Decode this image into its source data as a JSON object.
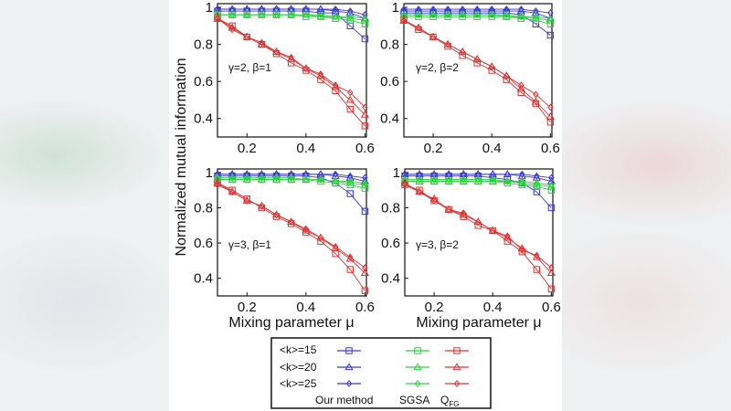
{
  "chart_data": [
    {
      "type": "line",
      "annotation": "γ=2, β=1",
      "xlabel": "",
      "ylabel": "",
      "xlim": [
        0.1,
        0.605
      ],
      "ylim": [
        0.3,
        1.02
      ],
      "grid": false,
      "x": [
        0.1,
        0.15,
        0.2,
        0.25,
        0.3,
        0.35,
        0.4,
        0.45,
        0.5,
        0.55,
        0.6
      ],
      "xticks": [
        "0.2",
        "0.4",
        "0.6"
      ],
      "yticks": [
        "1",
        "0.8",
        "0.6",
        "0.4"
      ],
      "series": [
        {
          "method": "Our method",
          "k": "<k>=15",
          "values": [
            0.98,
            0.98,
            0.98,
            0.98,
            0.98,
            0.98,
            0.98,
            0.97,
            0.97,
            0.9,
            0.83
          ]
        },
        {
          "method": "Our method",
          "k": "<k>=20",
          "values": [
            0.99,
            0.99,
            0.99,
            0.99,
            0.99,
            0.99,
            0.99,
            0.99,
            0.98,
            0.97,
            0.94
          ]
        },
        {
          "method": "Our method",
          "k": "<k>=25",
          "values": [
            0.99,
            0.99,
            0.99,
            0.99,
            0.99,
            0.99,
            0.99,
            0.99,
            0.99,
            0.98,
            0.96
          ]
        },
        {
          "method": "SGSA",
          "k": "<k>=15",
          "values": [
            0.96,
            0.96,
            0.96,
            0.96,
            0.96,
            0.96,
            0.95,
            0.95,
            0.94,
            0.93,
            0.91
          ]
        },
        {
          "method": "SGSA",
          "k": "<k>=20",
          "values": [
            0.96,
            0.96,
            0.96,
            0.96,
            0.96,
            0.96,
            0.96,
            0.95,
            0.95,
            0.94,
            0.93
          ]
        },
        {
          "method": "SGSA",
          "k": "<k>=25",
          "values": [
            0.96,
            0.96,
            0.96,
            0.96,
            0.96,
            0.96,
            0.96,
            0.96,
            0.95,
            0.95,
            0.94
          ]
        },
        {
          "method": "QFG",
          "k": "<k>=15",
          "values": [
            0.94,
            0.9,
            0.84,
            0.8,
            0.75,
            0.7,
            0.66,
            0.61,
            0.55,
            0.45,
            0.36
          ]
        },
        {
          "method": "QFG",
          "k": "<k>=20",
          "values": [
            0.94,
            0.89,
            0.84,
            0.8,
            0.76,
            0.72,
            0.67,
            0.63,
            0.57,
            0.5,
            0.42
          ]
        },
        {
          "method": "QFG",
          "k": "<k>=25",
          "values": [
            0.94,
            0.88,
            0.84,
            0.81,
            0.76,
            0.73,
            0.67,
            0.64,
            0.58,
            0.54,
            0.46
          ]
        }
      ]
    },
    {
      "type": "line",
      "annotation": "γ=2, β=2",
      "xlabel": "",
      "ylabel": "",
      "xlim": [
        0.1,
        0.605
      ],
      "ylim": [
        0.3,
        1.02
      ],
      "grid": false,
      "x": [
        0.1,
        0.15,
        0.2,
        0.25,
        0.3,
        0.35,
        0.4,
        0.45,
        0.5,
        0.55,
        0.6
      ],
      "xticks": [
        "0.2",
        "0.4",
        "0.6"
      ],
      "yticks": [
        "1",
        "0.8",
        "0.6",
        "0.4"
      ],
      "series": [
        {
          "method": "Our method",
          "k": "<k>=15",
          "values": [
            0.97,
            0.97,
            0.97,
            0.97,
            0.97,
            0.97,
            0.97,
            0.97,
            0.96,
            0.91,
            0.85
          ]
        },
        {
          "method": "Our method",
          "k": "<k>=20",
          "values": [
            0.98,
            0.98,
            0.98,
            0.98,
            0.98,
            0.98,
            0.98,
            0.98,
            0.98,
            0.97,
            0.94
          ]
        },
        {
          "method": "Our method",
          "k": "<k>=25",
          "values": [
            0.99,
            0.99,
            0.99,
            0.99,
            0.99,
            0.99,
            0.99,
            0.99,
            0.99,
            0.98,
            0.97
          ]
        },
        {
          "method": "SGSA",
          "k": "<k>=15",
          "values": [
            0.95,
            0.95,
            0.95,
            0.95,
            0.95,
            0.95,
            0.95,
            0.95,
            0.94,
            0.93,
            0.91
          ]
        },
        {
          "method": "SGSA",
          "k": "<k>=20",
          "values": [
            0.96,
            0.96,
            0.96,
            0.96,
            0.96,
            0.96,
            0.96,
            0.95,
            0.95,
            0.94,
            0.93
          ]
        },
        {
          "method": "SGSA",
          "k": "<k>=25",
          "values": [
            0.96,
            0.96,
            0.96,
            0.96,
            0.96,
            0.96,
            0.96,
            0.96,
            0.95,
            0.95,
            0.94
          ]
        },
        {
          "method": "QFG",
          "k": "<k>=15",
          "values": [
            0.93,
            0.88,
            0.84,
            0.79,
            0.74,
            0.7,
            0.66,
            0.61,
            0.54,
            0.48,
            0.38
          ]
        },
        {
          "method": "QFG",
          "k": "<k>=20",
          "values": [
            0.93,
            0.89,
            0.84,
            0.8,
            0.76,
            0.72,
            0.68,
            0.63,
            0.56,
            0.49,
            0.41
          ]
        },
        {
          "method": "QFG",
          "k": "<k>=25",
          "values": [
            0.93,
            0.89,
            0.84,
            0.8,
            0.76,
            0.72,
            0.68,
            0.63,
            0.58,
            0.53,
            0.46
          ]
        }
      ]
    },
    {
      "type": "line",
      "annotation": "γ=3, β=1",
      "xlabel": "Mixing parameter μ",
      "ylabel": "",
      "xlim": [
        0.1,
        0.605
      ],
      "ylim": [
        0.3,
        1.02
      ],
      "grid": false,
      "x": [
        0.1,
        0.15,
        0.2,
        0.25,
        0.3,
        0.35,
        0.4,
        0.45,
        0.5,
        0.55,
        0.6
      ],
      "xticks": [
        "0.2",
        "0.4",
        "0.6"
      ],
      "yticks": [
        "1",
        "0.8",
        "0.6",
        "0.4"
      ],
      "series": [
        {
          "method": "Our method",
          "k": "<k>=15",
          "values": [
            0.98,
            0.98,
            0.98,
            0.98,
            0.98,
            0.98,
            0.98,
            0.97,
            0.94,
            0.88,
            0.78
          ]
        },
        {
          "method": "Our method",
          "k": "<k>=20",
          "values": [
            0.99,
            0.99,
            0.99,
            0.99,
            0.99,
            0.99,
            0.99,
            0.99,
            0.98,
            0.97,
            0.95
          ]
        },
        {
          "method": "Our method",
          "k": "<k>=25",
          "values": [
            0.99,
            0.99,
            0.99,
            0.99,
            0.99,
            0.99,
            0.99,
            0.99,
            0.99,
            0.98,
            0.97
          ]
        },
        {
          "method": "SGSA",
          "k": "<k>=15",
          "values": [
            0.96,
            0.96,
            0.96,
            0.96,
            0.96,
            0.96,
            0.96,
            0.95,
            0.94,
            0.93,
            0.91
          ]
        },
        {
          "method": "SGSA",
          "k": "<k>=20",
          "values": [
            0.96,
            0.96,
            0.96,
            0.96,
            0.96,
            0.96,
            0.96,
            0.96,
            0.95,
            0.94,
            0.93
          ]
        },
        {
          "method": "SGSA",
          "k": "<k>=25",
          "values": [
            0.97,
            0.97,
            0.97,
            0.97,
            0.97,
            0.97,
            0.96,
            0.96,
            0.95,
            0.95,
            0.94
          ]
        },
        {
          "method": "QFG",
          "k": "<k>=15",
          "values": [
            0.94,
            0.9,
            0.85,
            0.8,
            0.75,
            0.71,
            0.66,
            0.61,
            0.54,
            0.45,
            0.33
          ]
        },
        {
          "method": "QFG",
          "k": "<k>=20",
          "values": [
            0.94,
            0.89,
            0.84,
            0.81,
            0.76,
            0.72,
            0.67,
            0.63,
            0.57,
            0.51,
            0.43
          ]
        },
        {
          "method": "QFG",
          "k": "<k>=25",
          "values": [
            0.93,
            0.89,
            0.84,
            0.81,
            0.76,
            0.72,
            0.68,
            0.63,
            0.58,
            0.52,
            0.46
          ]
        }
      ]
    },
    {
      "type": "line",
      "annotation": "γ=3, β=2",
      "xlabel": "Mixing parameter μ",
      "ylabel": "",
      "xlim": [
        0.1,
        0.605
      ],
      "ylim": [
        0.3,
        1.02
      ],
      "grid": false,
      "x": [
        0.1,
        0.15,
        0.2,
        0.25,
        0.3,
        0.35,
        0.4,
        0.45,
        0.5,
        0.55,
        0.6
      ],
      "xticks": [
        "0.2",
        "0.4",
        "0.6"
      ],
      "yticks": [
        "1",
        "0.8",
        "0.6",
        "0.4"
      ],
      "series": [
        {
          "method": "Our method",
          "k": "<k>=15",
          "values": [
            0.98,
            0.98,
            0.98,
            0.98,
            0.98,
            0.98,
            0.97,
            0.96,
            0.94,
            0.89,
            0.8
          ]
        },
        {
          "method": "Our method",
          "k": "<k>=20",
          "values": [
            0.99,
            0.99,
            0.99,
            0.99,
            0.99,
            0.99,
            0.99,
            0.99,
            0.98,
            0.97,
            0.95
          ]
        },
        {
          "method": "Our method",
          "k": "<k>=25",
          "values": [
            0.99,
            0.99,
            0.99,
            0.99,
            0.99,
            0.99,
            0.99,
            0.99,
            0.99,
            0.98,
            0.97
          ]
        },
        {
          "method": "SGSA",
          "k": "<k>=15",
          "values": [
            0.95,
            0.95,
            0.95,
            0.95,
            0.95,
            0.95,
            0.95,
            0.94,
            0.93,
            0.92,
            0.9
          ]
        },
        {
          "method": "SGSA",
          "k": "<k>=20",
          "values": [
            0.95,
            0.95,
            0.95,
            0.95,
            0.95,
            0.95,
            0.95,
            0.95,
            0.94,
            0.93,
            0.92
          ]
        },
        {
          "method": "SGSA",
          "k": "<k>=25",
          "values": [
            0.96,
            0.96,
            0.96,
            0.96,
            0.96,
            0.96,
            0.96,
            0.95,
            0.95,
            0.94,
            0.93
          ]
        },
        {
          "method": "QFG",
          "k": "<k>=15",
          "values": [
            0.93,
            0.9,
            0.84,
            0.79,
            0.75,
            0.7,
            0.67,
            0.61,
            0.55,
            0.45,
            0.34
          ]
        },
        {
          "method": "QFG",
          "k": "<k>=20",
          "values": [
            0.94,
            0.89,
            0.85,
            0.79,
            0.76,
            0.72,
            0.67,
            0.63,
            0.57,
            0.52,
            0.43
          ]
        },
        {
          "method": "QFG",
          "k": "<k>=25",
          "values": [
            0.93,
            0.89,
            0.84,
            0.79,
            0.77,
            0.72,
            0.67,
            0.64,
            0.56,
            0.53,
            0.46
          ]
        }
      ]
    }
  ],
  "shared_ylabel": "Normalized mutual information",
  "legend": {
    "k_labels": [
      "<k>=15",
      "<k>=20",
      "<k>=25"
    ],
    "methods": [
      {
        "label": "Our method"
      },
      {
        "label": "SGSA"
      },
      {
        "label": "Q",
        "sub": "FG"
      }
    ],
    "markers": [
      "square",
      "triangle",
      "diamond"
    ],
    "placement": "bottom"
  },
  "colors": {
    "Our method": "#3a3acc",
    "SGSA": "#33cc44",
    "QFG": "#dd3333"
  }
}
